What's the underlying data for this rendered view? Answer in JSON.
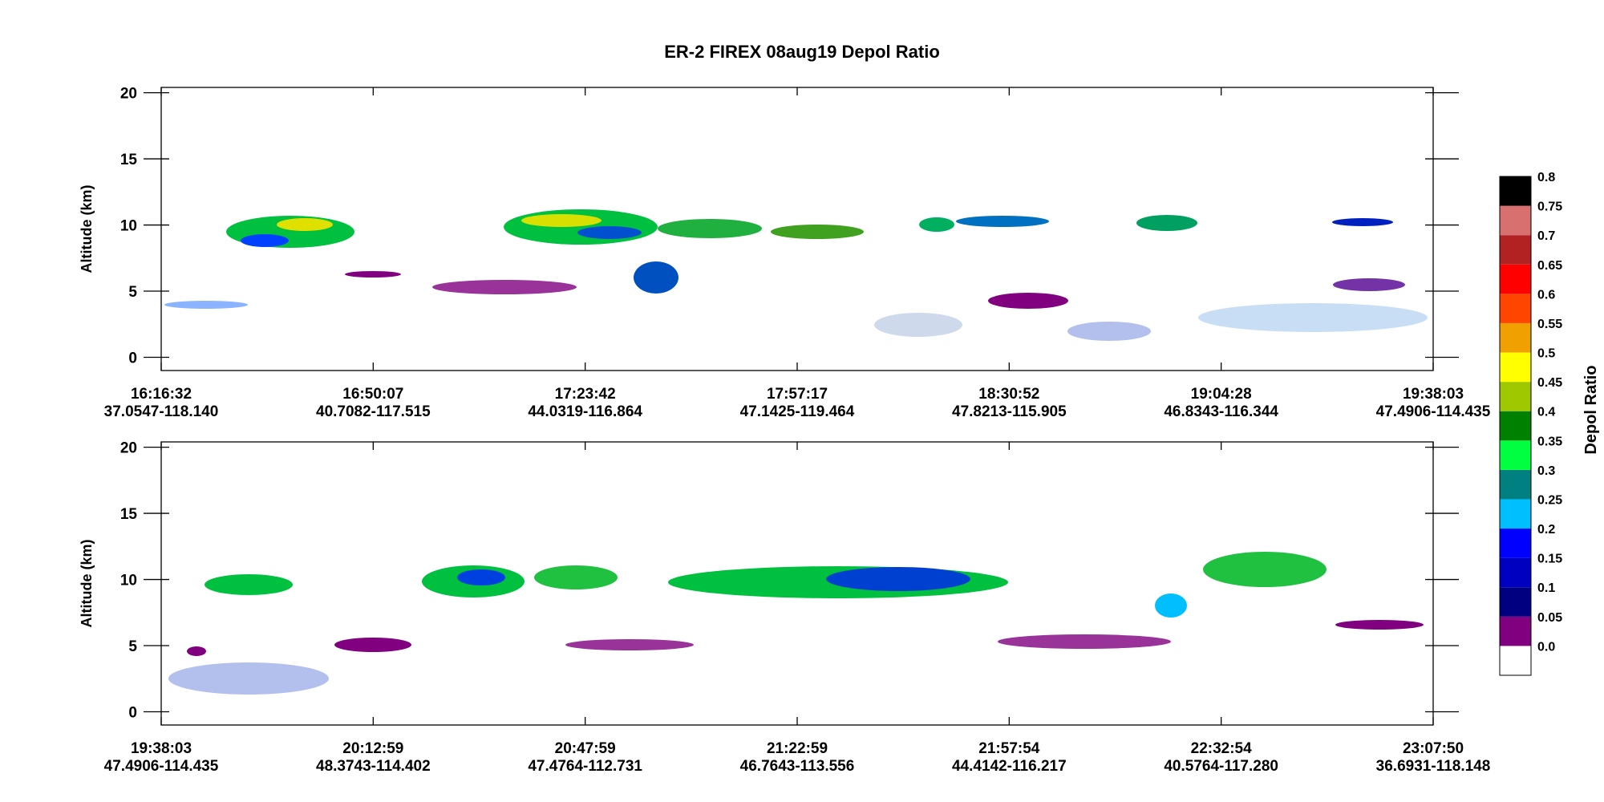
{
  "chart_data": [
    {
      "type": "curtain",
      "title": "ER-2 FIREX 08aug19 Depol Ratio",
      "ylabel": "Altitude (km)",
      "ylim": [
        -1,
        20.4
      ],
      "yticks": [
        0,
        5,
        10,
        15,
        20
      ],
      "categories": [
        "16:16:32",
        "16:50:07",
        "17:23:42",
        "17:57:17",
        "18:30:52",
        "19:04:28",
        "19:38:03"
      ],
      "locations": [
        "37.0547-118.140",
        "40.7082-117.515",
        "44.0319-116.864",
        "47.1425-119.464",
        "47.8213-115.905",
        "46.8343-116.344",
        "47.4906-114.435"
      ]
    },
    {
      "type": "curtain",
      "ylabel": "Altitude (km)",
      "ylim": [
        -1,
        20.4
      ],
      "yticks": [
        0,
        5,
        10,
        15,
        20
      ],
      "categories": [
        "19:38:03",
        "20:12:59",
        "20:47:59",
        "21:22:59",
        "21:57:54",
        "22:32:54",
        "23:07:50"
      ],
      "locations": [
        "47.4906-114.435",
        "48.3743-114.402",
        "47.4764-112.731",
        "46.7643-113.556",
        "44.4142-116.217",
        "40.5764-117.280",
        "36.6931-118.148"
      ]
    },
    {
      "type": "colorbar",
      "label": "Depol Ratio",
      "levels": [
        {
          "value": 0,
          "label": "0.0"
        },
        0.05,
        0.1,
        0.15,
        0.2,
        0.25,
        0.3,
        0.35,
        0.4,
        0.45,
        0.5,
        0.55,
        0.6,
        0.65,
        0.7,
        0.75,
        0.8
      ],
      "colors": [
        "#ffffff",
        "#800080",
        "#000080",
        "#0000c0",
        "#0000ff",
        "#00bfff",
        "#008080",
        "#00ff40",
        "#008000",
        "#a0c800",
        "#ffff00",
        "#f0a000",
        "#ff4500",
        "#ff0000",
        "#b22222",
        "#d87070",
        "#000000"
      ]
    }
  ]
}
